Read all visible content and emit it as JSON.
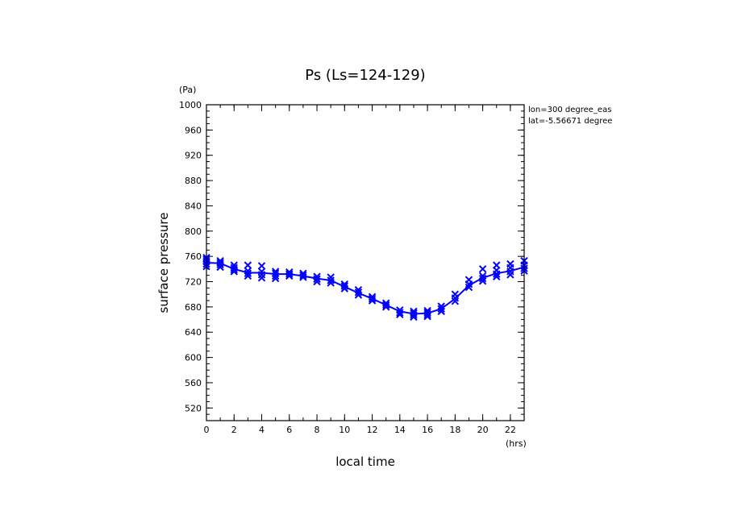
{
  "chart_data": {
    "type": "scatter",
    "title": "Ps (Ls=124-129)",
    "ylabel": "surface pressure",
    "yunit": "(Pa)",
    "xlabel": "local time",
    "xunit": "(hrs)",
    "annotations": [
      "lon=300 degree_eas",
      "lat=-5.56671 degree"
    ],
    "xlim": [
      0,
      23
    ],
    "ylim": [
      500,
      1000
    ],
    "xticks": [
      0,
      2,
      4,
      6,
      8,
      10,
      12,
      14,
      16,
      18,
      20,
      22
    ],
    "yticks": [
      520,
      560,
      600,
      640,
      680,
      720,
      760,
      800,
      840,
      880,
      920,
      960,
      1000
    ],
    "series_color": "#0000ff",
    "mean_line": {
      "x": [
        0,
        1,
        2,
        3,
        4,
        5,
        6,
        7,
        8,
        9,
        10,
        11,
        12,
        13,
        14,
        15,
        16,
        17,
        18,
        19,
        20,
        21,
        22,
        23
      ],
      "y": [
        750,
        749,
        740,
        734,
        734,
        732,
        732,
        729,
        725,
        722,
        712,
        702,
        693,
        683,
        673,
        669,
        670,
        677,
        693,
        714,
        726,
        733,
        737,
        743
      ]
    },
    "points": {
      "x": [
        0,
        0,
        0,
        0,
        0,
        1,
        1,
        1,
        1,
        2,
        2,
        2,
        2,
        3,
        3,
        3,
        3,
        4,
        4,
        4,
        4,
        5,
        5,
        5,
        5,
        6,
        6,
        6,
        7,
        7,
        7,
        8,
        8,
        8,
        9,
        9,
        9,
        10,
        10,
        10,
        11,
        11,
        11,
        12,
        12,
        12,
        13,
        13,
        13,
        14,
        14,
        14,
        15,
        15,
        15,
        15,
        16,
        16,
        16,
        16,
        17,
        17,
        17,
        18,
        18,
        18,
        19,
        19,
        19,
        20,
        20,
        20,
        20,
        21,
        21,
        21,
        21,
        22,
        22,
        22,
        22,
        23,
        23,
        23,
        23
      ],
      "y": [
        744,
        748,
        752,
        755,
        758,
        743,
        747,
        750,
        753,
        736,
        739,
        742,
        746,
        729,
        733,
        737,
        746,
        726,
        731,
        736,
        745,
        725,
        729,
        733,
        736,
        729,
        732,
        735,
        727,
        730,
        733,
        720,
        724,
        728,
        718,
        722,
        727,
        709,
        713,
        716,
        699,
        703,
        707,
        690,
        693,
        696,
        680,
        683,
        686,
        668,
        671,
        675,
        664,
        667,
        670,
        673,
        665,
        668,
        671,
        674,
        673,
        677,
        681,
        689,
        694,
        700,
        711,
        716,
        723,
        721,
        725,
        729,
        740,
        728,
        732,
        738,
        746,
        731,
        736,
        742,
        748,
        737,
        741,
        746,
        753
      ]
    }
  }
}
